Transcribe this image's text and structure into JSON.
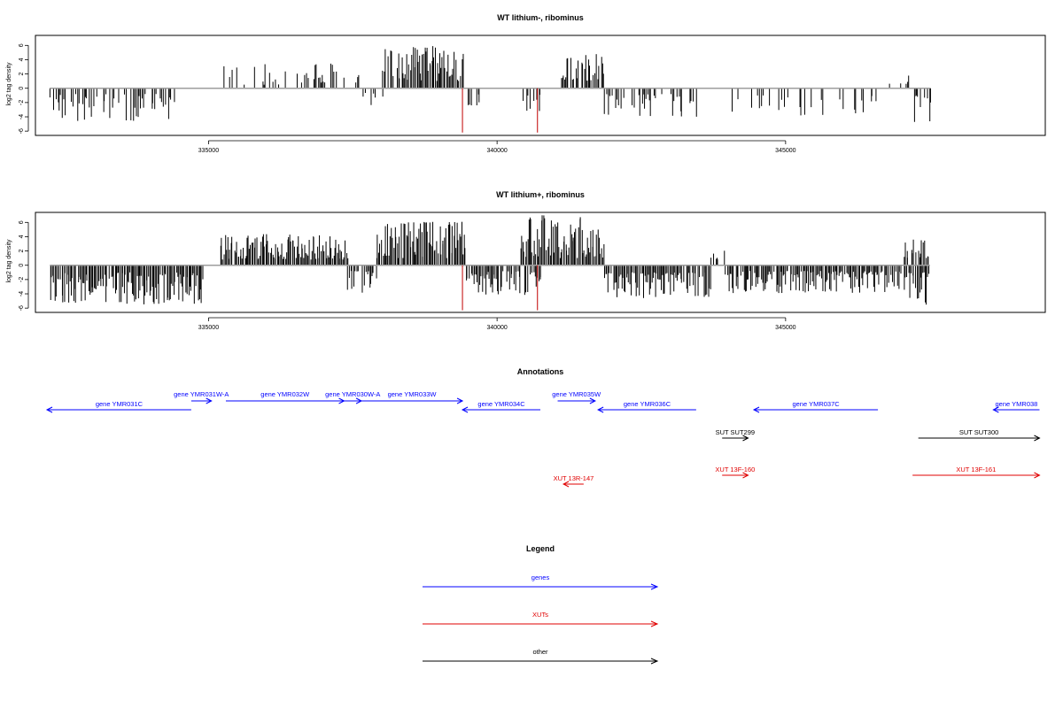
{
  "chart_data": [
    {
      "type": "bar",
      "title": "WT lithium-, ribominus",
      "ylabel": "log2 tag density",
      "xlim": [
        332000,
        349500
      ],
      "ylim": [
        -6.6,
        7.4
      ],
      "yticks": [
        -6,
        -4,
        -2,
        0,
        2,
        4,
        6
      ],
      "xticks": [
        335000,
        340000,
        345000
      ],
      "xtick_labels": [
        "335000",
        "340000",
        "345000"
      ],
      "baseline_color": "#9e9e9e",
      "bar_color": "#000000",
      "highlight_color": "#c00000",
      "seed": 11,
      "segments": [
        {
          "from": 332250,
          "to": 334400,
          "sign": -1,
          "density": 0.4,
          "min": 0.8,
          "max": 4.6
        },
        {
          "from": 335250,
          "to": 336500,
          "sign": 1,
          "density": 0.3,
          "min": 0.5,
          "max": 3.4
        },
        {
          "from": 336500,
          "to": 337600,
          "sign": 1,
          "density": 0.4,
          "min": 0.8,
          "max": 3.7
        },
        {
          "from": 337600,
          "to": 338000,
          "sign": -1,
          "density": 0.2,
          "min": 0.5,
          "max": 2.5
        },
        {
          "from": 338000,
          "to": 339400,
          "sign": 1,
          "density": 0.85,
          "min": 1.0,
          "max": 5.9
        },
        {
          "from": 339400,
          "to": 339700,
          "sign": -1,
          "density": 0.4,
          "min": 0.5,
          "max": 2.6
        },
        {
          "from": 340400,
          "to": 340750,
          "sign": -1,
          "density": 0.45,
          "min": 0.8,
          "max": 3.2
        },
        {
          "from": 341100,
          "to": 341850,
          "sign": 1,
          "density": 0.8,
          "min": 1.0,
          "max": 4.9
        },
        {
          "from": 341850,
          "to": 343450,
          "sign": -1,
          "density": 0.4,
          "min": 0.8,
          "max": 4.0
        },
        {
          "from": 344050,
          "to": 346600,
          "sign": -1,
          "density": 0.22,
          "min": 1.0,
          "max": 3.8
        },
        {
          "from": 346700,
          "to": 347200,
          "sign": 1,
          "density": 0.15,
          "min": 0.5,
          "max": 2.0
        },
        {
          "from": 347200,
          "to": 347500,
          "sign": -1,
          "density": 0.7,
          "min": 1.0,
          "max": 5.5
        }
      ],
      "highlights": [
        {
          "x": 339400,
          "y": -6.2
        },
        {
          "x": 340700,
          "y": -6.2
        }
      ]
    },
    {
      "type": "bar",
      "title": "WT lithium+, ribominus",
      "ylabel": "log2 tag density",
      "xlim": [
        332000,
        349500
      ],
      "ylim": [
        -6.6,
        7.4
      ],
      "yticks": [
        -6,
        -4,
        -2,
        0,
        2,
        4,
        6
      ],
      "xticks": [
        335000,
        340000,
        345000
      ],
      "xtick_labels": [
        "335000",
        "340000",
        "345000"
      ],
      "baseline_color": "#9e9e9e",
      "bar_color": "#000000",
      "highlight_color": "#c00000",
      "seed": 29,
      "segments": [
        {
          "from": 332250,
          "to": 334900,
          "sign": -1,
          "density": 0.95,
          "min": 1.0,
          "max": 5.5
        },
        {
          "from": 335200,
          "to": 337400,
          "sign": 1,
          "density": 0.95,
          "min": 0.8,
          "max": 4.4
        },
        {
          "from": 337400,
          "to": 337900,
          "sign": -1,
          "density": 0.35,
          "min": 0.8,
          "max": 4.2
        },
        {
          "from": 337900,
          "to": 339450,
          "sign": 1,
          "density": 0.97,
          "min": 1.0,
          "max": 6.2
        },
        {
          "from": 339450,
          "to": 340750,
          "sign": -1,
          "density": 0.75,
          "min": 0.8,
          "max": 4.2
        },
        {
          "from": 340400,
          "to": 341850,
          "sign": 1,
          "density": 0.97,
          "min": 1.0,
          "max": 7.1
        },
        {
          "from": 341850,
          "to": 343700,
          "sign": -1,
          "density": 0.9,
          "min": 1.0,
          "max": 4.6
        },
        {
          "from": 343700,
          "to": 343950,
          "sign": 1,
          "density": 0.4,
          "min": 0.8,
          "max": 2.5
        },
        {
          "from": 343950,
          "to": 347000,
          "sign": -1,
          "density": 0.85,
          "min": 0.8,
          "max": 3.9
        },
        {
          "from": 347050,
          "to": 347500,
          "sign": 1,
          "density": 0.85,
          "min": 1.0,
          "max": 3.8
        },
        {
          "from": 347050,
          "to": 347500,
          "sign": -1,
          "density": 0.85,
          "min": 1.0,
          "max": 5.8
        }
      ],
      "highlights": [
        {
          "x": 339400,
          "y": -6.3
        },
        {
          "x": 340700,
          "y": -6.3
        }
      ]
    }
  ],
  "annotations": {
    "title": "Annotations",
    "items": [
      {
        "label": "gene YMR031C",
        "start": 334700,
        "end": 332200,
        "track": 1,
        "kind": "gene"
      },
      {
        "label": "gene YMR031W-A",
        "start": 334700,
        "end": 335050,
        "track": 0,
        "kind": "gene"
      },
      {
        "label": "gene YMR032W",
        "start": 335300,
        "end": 337350,
        "track": 0,
        "kind": "gene"
      },
      {
        "label": "gene YMR030W-A",
        "start": 337350,
        "end": 337650,
        "track": 0,
        "kind": "gene"
      },
      {
        "label": "gene YMR033W",
        "start": 337650,
        "end": 339400,
        "track": 0,
        "kind": "gene"
      },
      {
        "label": "gene YMR034C",
        "start": 340750,
        "end": 339400,
        "track": 1,
        "kind": "gene"
      },
      {
        "label": "gene YMR035W",
        "start": 341050,
        "end": 341700,
        "track": 0,
        "kind": "gene"
      },
      {
        "label": "gene YMR036C",
        "start": 343450,
        "end": 341750,
        "track": 1,
        "kind": "gene"
      },
      {
        "label": "gene YMR037C",
        "start": 346600,
        "end": 344450,
        "track": 1,
        "kind": "gene"
      },
      {
        "label": "gene YMR038",
        "start": 349400,
        "end": 348600,
        "track": 1,
        "kind": "gene"
      },
      {
        "label": "SUT SUT299",
        "start": 343900,
        "end": 344350,
        "track": 2,
        "kind": "other"
      },
      {
        "label": "SUT SUT300",
        "start": 347300,
        "end": 349400,
        "track": 2,
        "kind": "other"
      },
      {
        "label": "XUT 13F-160",
        "start": 343900,
        "end": 344350,
        "track": 3,
        "kind": "xut"
      },
      {
        "label": "XUT 13F-161",
        "start": 347200,
        "end": 349400,
        "track": 3,
        "kind": "xut"
      },
      {
        "label": "XUT 13R-147",
        "start": 341500,
        "end": 341150,
        "track": 4,
        "kind": "xut"
      }
    ]
  },
  "legend": {
    "title": "Legend",
    "entries": [
      {
        "label": "genes",
        "kind": "gene"
      },
      {
        "label": "XUTs",
        "kind": "xut"
      },
      {
        "label": "other",
        "kind": "other"
      }
    ]
  },
  "colors": {
    "gene": "#0000ff",
    "xut": "#e00000",
    "other": "#000000"
  }
}
